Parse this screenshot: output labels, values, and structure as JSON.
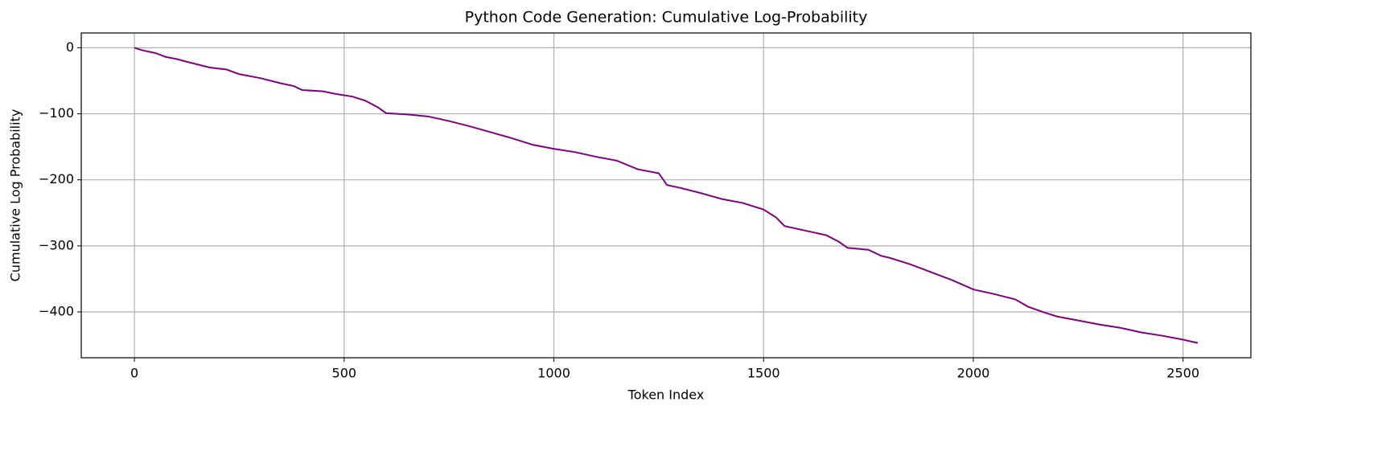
{
  "chart_data": {
    "type": "line",
    "title": "Python Code Generation: Cumulative Log-Probability",
    "x_label": "Token Index",
    "y_label": "Cumulative Log Probability",
    "grid": true,
    "xlim": [
      -126.75,
      2661.75
    ],
    "ylim": [
      -469.4,
      22.4
    ],
    "xticks": [
      0,
      500,
      1000,
      1500,
      2000,
      2500
    ],
    "yticks": [
      {
        "value": -400,
        "label": "−400"
      },
      {
        "value": -300,
        "label": "−300"
      },
      {
        "value": -200,
        "label": "−200"
      },
      {
        "value": -100,
        "label": "−100"
      },
      0
    ],
    "series": [
      {
        "color": "#800080",
        "x": [
          0,
          20,
          50,
          75,
          100,
          130,
          180,
          220,
          250,
          300,
          350,
          380,
          400,
          450,
          480,
          520,
          550,
          580,
          600,
          650,
          700,
          750,
          800,
          850,
          900,
          950,
          1000,
          1050,
          1100,
          1150,
          1200,
          1250,
          1270,
          1300,
          1350,
          1400,
          1450,
          1500,
          1530,
          1550,
          1600,
          1650,
          1680,
          1700,
          1750,
          1780,
          1800,
          1850,
          1900,
          1950,
          2000,
          2050,
          2100,
          2130,
          2170,
          2200,
          2250,
          2300,
          2350,
          2400,
          2450,
          2500,
          2535
        ],
        "values": [
          0,
          -4,
          -8,
          -14,
          -17,
          -22,
          -30,
          -33,
          -40,
          -46,
          -54,
          -58,
          -64,
          -66,
          -70,
          -74,
          -80,
          -90,
          -99,
          -101,
          -104,
          -111,
          -119,
          -128,
          -137,
          -147,
          -153,
          -158,
          -165,
          -171,
          -184,
          -190,
          -208,
          -212,
          -220,
          -229,
          -235,
          -245,
          -257,
          -270,
          -277,
          -284,
          -294,
          -303,
          -306,
          -315,
          -318,
          -328,
          -340,
          -352,
          -366,
          -373,
          -381,
          -392,
          -401,
          -407,
          -413,
          -419,
          -424,
          -431,
          -436,
          -442,
          -447
        ]
      }
    ]
  }
}
